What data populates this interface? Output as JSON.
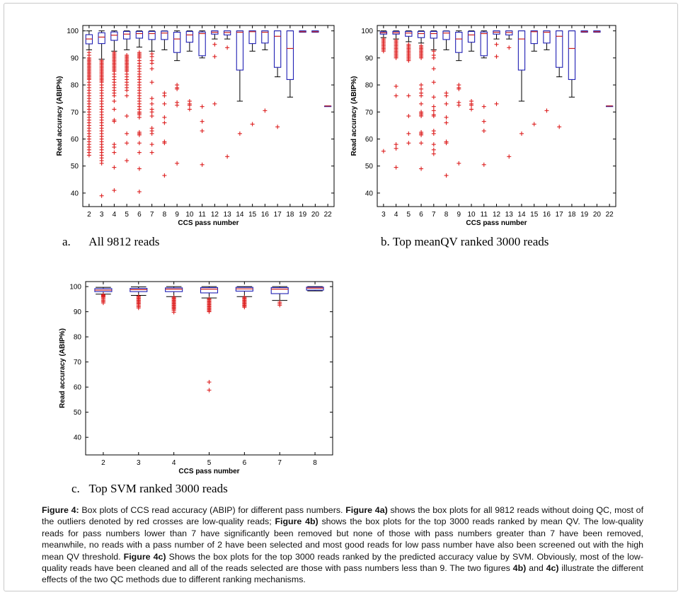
{
  "figure": {
    "panels": [
      {
        "id": "a",
        "letter": "a.",
        "title": "All 9812 reads"
      },
      {
        "id": "b",
        "letter": "b.",
        "title": "Top meanQV ranked 3000 reads"
      },
      {
        "id": "c",
        "letter": "c.",
        "title": "Top SVM ranked 3000 reads"
      }
    ],
    "caption": {
      "label": "Figure 4:",
      "s1": " Box plots of CCS read accuracy (ABIP) for different pass numbers. ",
      "r1": "Figure 4a)",
      "s2": " shows the box plots for all 9812 reads without doing QC, most of the outliers denoted by red crosses are low-quality reads; ",
      "r2": "Figure 4b)",
      "s3": " shows the box plots for the top 3000 reads ranked by mean QV. The low-quality reads for pass numbers lower than 7 have significantly been removed but none of those with pass numbers greater than 7 have been removed, meanwhile, no reads with a pass number of 2 have been selected and most good reads for low pass number have also been screened out with the high mean QV threshold. ",
      "r3": "Figure 4c)",
      "s4": " Shows the box plots for the top 3000 reads ranked by the predicted accuracy value by SVM. Obviously, most of the low-quality reads have been cleaned and all of the reads selected are those with pass numbers less than 9. The two figures ",
      "r4": "4b)",
      "s5": " and ",
      "r5": "4c)",
      "s6": " illustrate the different effects of the two  QC methods due to different ranking mechanisms."
    }
  },
  "colors": {
    "box": "#1f1fb4",
    "median": "#cc1f1f",
    "outlier": "#dd1f1f",
    "whisker": "#000000",
    "frame": "#000000"
  },
  "chart_data": [
    {
      "type": "box",
      "xlabel": "CCS pass number",
      "ylabel": "Read accuracy (ABIP%)",
      "ylim": [
        35,
        102
      ],
      "yticks": [
        40,
        50,
        60,
        70,
        80,
        90,
        100
      ],
      "categories": [
        "2",
        "3",
        "4",
        "5",
        "6",
        "7",
        "8",
        "9",
        "10",
        "11",
        "12",
        "13",
        "14",
        "15",
        "16",
        "17",
        "18",
        "19",
        "20",
        "22"
      ],
      "boxes": [
        {
          "whislo": 93.0,
          "q1": 95.2,
          "med": 97.0,
          "q3": 98.6,
          "whishi": 100,
          "outliers": [
            92,
            91,
            90,
            89.5,
            89,
            88.5,
            88,
            87.5,
            87,
            86.5,
            86,
            85.5,
            85,
            84.5,
            84,
            83.5,
            83,
            82.5,
            82,
            81,
            80,
            79,
            78,
            77,
            76,
            75,
            74,
            73,
            72,
            71,
            70,
            69,
            68,
            67,
            66,
            65,
            64,
            63,
            62,
            61,
            60,
            59,
            58,
            57,
            56,
            55,
            54
          ]
        },
        {
          "whislo": 89.5,
          "q1": 95.3,
          "med": 97.7,
          "q3": 99.3,
          "whishi": 100,
          "outliers": [
            89,
            88.5,
            88,
            87.5,
            87,
            86.5,
            86,
            85.5,
            85,
            84.5,
            84,
            83.5,
            83,
            82.5,
            82,
            81.5,
            81,
            80,
            79,
            78,
            77,
            76,
            75,
            74,
            73,
            72,
            71,
            70,
            69,
            68,
            67,
            66,
            65,
            64,
            63,
            62,
            61,
            60,
            59,
            58,
            57,
            56,
            55,
            54,
            53,
            52,
            51,
            39
          ]
        },
        {
          "whislo": 92.5,
          "q1": 96.5,
          "med": 98.4,
          "q3": 99.6,
          "whishi": 100,
          "outliers": [
            92,
            91.5,
            91,
            90.5,
            90,
            89.5,
            89,
            88.5,
            88,
            87.5,
            87,
            86.5,
            86,
            85.5,
            85,
            84,
            83,
            82,
            81,
            80,
            79,
            78,
            77,
            76,
            74,
            71,
            67,
            66.5,
            58,
            57,
            55,
            49.5,
            41
          ]
        },
        {
          "whislo": 93.0,
          "q1": 97.0,
          "med": 98.8,
          "q3": 99.8,
          "whishi": 100,
          "outliers": [
            91,
            90.5,
            90,
            89.5,
            89,
            88.5,
            88,
            87.5,
            87,
            86.5,
            86,
            85.5,
            85,
            84,
            83,
            82,
            81,
            80,
            79,
            78,
            76,
            68.5,
            62,
            58.5,
            52
          ]
        },
        {
          "whislo": 94.0,
          "q1": 97.3,
          "med": 99.0,
          "q3": 99.8,
          "whishi": 100,
          "outliers": [
            92,
            91.5,
            91,
            90.5,
            90,
            89,
            88,
            87,
            86,
            85,
            84,
            83,
            82,
            81,
            80,
            79,
            78,
            77,
            76,
            75,
            74,
            73,
            72,
            71,
            70,
            69.5,
            69,
            68,
            62.5,
            62,
            61.5,
            58.5,
            55,
            49,
            40.5
          ]
        },
        {
          "whislo": 92.5,
          "q1": 96.8,
          "med": 99.0,
          "q3": 99.8,
          "whishi": 100,
          "outliers": [
            91.5,
            90.5,
            89,
            88,
            86,
            81,
            75,
            73,
            71,
            70,
            68.5,
            64,
            63,
            62,
            58,
            55
          ]
        },
        {
          "whislo": 93.0,
          "q1": 96.8,
          "med": 99.2,
          "q3": 99.9,
          "whishi": 100,
          "outliers": [
            77,
            76,
            73,
            68,
            66,
            59,
            58.5,
            46.5
          ]
        },
        {
          "whislo": 89.0,
          "q1": 92.0,
          "med": 97.0,
          "q3": 99.5,
          "whishi": 100,
          "outliers": [
            80,
            79,
            78.5,
            73.5,
            72.5,
            51
          ]
        },
        {
          "whislo": 92.5,
          "q1": 95.8,
          "med": 98.5,
          "q3": 99.8,
          "whishi": 100,
          "outliers": [
            74,
            73,
            72.5,
            71
          ]
        },
        {
          "whislo": 90.0,
          "q1": 90.8,
          "med": 99.0,
          "q3": 99.6,
          "whishi": 100,
          "outliers": [
            72,
            66.5,
            63,
            50.5
          ]
        },
        {
          "whislo": 97.0,
          "q1": 98.8,
          "med": 99.5,
          "q3": 100,
          "whishi": 100,
          "outliers": [
            95,
            90.5,
            73
          ]
        },
        {
          "whislo": 97.0,
          "q1": 98.5,
          "med": 99.4,
          "q3": 100,
          "whishi": 100,
          "outliers": [
            93.8,
            53.5
          ]
        },
        {
          "whislo": 74.0,
          "q1": 85.5,
          "med": 99.5,
          "q3": 100,
          "whishi": 100,
          "outliers": [
            62
          ]
        },
        {
          "whislo": 92.5,
          "q1": 95.3,
          "med": 99.7,
          "q3": 100,
          "whishi": 100,
          "outliers": [
            65.5
          ]
        },
        {
          "whislo": 93.0,
          "q1": 95.5,
          "med": 99.5,
          "q3": 100,
          "whishi": 100,
          "outliers": [
            70.5
          ]
        },
        {
          "whislo": 83.0,
          "q1": 86.5,
          "med": 98.0,
          "q3": 100,
          "whishi": 100,
          "outliers": [
            64.5
          ]
        },
        {
          "whislo": 75.5,
          "q1": 82.0,
          "med": 93.5,
          "q3": 100,
          "whishi": 100,
          "outliers": []
        },
        {
          "whislo": 99.5,
          "q1": 99.5,
          "med": 99.7,
          "q3": 100,
          "whishi": 100,
          "outliers": []
        },
        {
          "whislo": 99.5,
          "q1": 99.5,
          "med": 99.7,
          "q3": 100,
          "whishi": 100,
          "outliers": []
        },
        {
          "whislo": 72.2,
          "q1": 72.2,
          "med": 72.2,
          "q3": 72.2,
          "whishi": 72.2,
          "outliers": []
        }
      ]
    },
    {
      "type": "box",
      "xlabel": "CCS pass number",
      "ylabel": "Read accuracy (ABIP%)",
      "ylim": [
        35,
        102
      ],
      "yticks": [
        40,
        50,
        60,
        70,
        80,
        90,
        100
      ],
      "categories": [
        "3",
        "4",
        "5",
        "6",
        "7",
        "8",
        "9",
        "10",
        "11",
        "12",
        "13",
        "14",
        "15",
        "16",
        "17",
        "18",
        "19",
        "20",
        "22"
      ],
      "boxes": [
        {
          "whislo": 97.5,
          "q1": 98.8,
          "med": 99.3,
          "q3": 99.7,
          "whishi": 100,
          "outliers": [
            97,
            96.5,
            96,
            95.5,
            95,
            94.5,
            94,
            93.5,
            93,
            92.5,
            55.5
          ]
        },
        {
          "whislo": 97.0,
          "q1": 98.8,
          "med": 99.3,
          "q3": 99.8,
          "whishi": 100,
          "outliers": [
            96.5,
            96,
            95.5,
            95,
            94.5,
            94,
            93.5,
            93,
            92.5,
            92,
            91.5,
            91,
            90.5,
            90,
            79.5,
            76,
            58,
            56.5,
            49.5
          ]
        },
        {
          "whislo": 96.0,
          "q1": 98.0,
          "med": 99.2,
          "q3": 99.8,
          "whishi": 100,
          "outliers": [
            95,
            94.5,
            94,
            93.5,
            93,
            92.5,
            92,
            91.5,
            91,
            90.5,
            90,
            89.5,
            89,
            76,
            68.5,
            62,
            58.5
          ]
        },
        {
          "whislo": 95.5,
          "q1": 97.5,
          "med": 99.0,
          "q3": 99.8,
          "whishi": 100,
          "outliers": [
            94.5,
            94,
            93.5,
            93,
            92.5,
            92,
            91.5,
            91,
            90.5,
            90,
            80,
            78.5,
            77,
            76,
            73,
            70,
            69.5,
            69,
            68.5,
            62.5,
            62,
            61.5,
            58.5,
            49
          ]
        },
        {
          "whislo": 93.0,
          "q1": 97.3,
          "med": 99.0,
          "q3": 99.8,
          "whishi": 100,
          "outliers": [
            92.5,
            91,
            90,
            86,
            81,
            75.5,
            72,
            70.5,
            69,
            68.5,
            63,
            62,
            58,
            56,
            54.5
          ]
        },
        {
          "whislo": 93.0,
          "q1": 96.8,
          "med": 99.2,
          "q3": 99.9,
          "whishi": 100,
          "outliers": [
            77,
            76,
            73,
            68,
            66,
            59,
            58.5,
            46.5
          ]
        },
        {
          "whislo": 89.0,
          "q1": 92.0,
          "med": 97.0,
          "q3": 99.5,
          "whishi": 100,
          "outliers": [
            80,
            79,
            78.5,
            73.5,
            72.5,
            51
          ]
        },
        {
          "whislo": 92.5,
          "q1": 95.8,
          "med": 98.5,
          "q3": 99.8,
          "whishi": 100,
          "outliers": [
            74,
            73,
            72.5,
            71
          ]
        },
        {
          "whislo": 90.0,
          "q1": 90.8,
          "med": 99.0,
          "q3": 99.6,
          "whishi": 100,
          "outliers": [
            72,
            66.5,
            63,
            50.5
          ]
        },
        {
          "whislo": 97.0,
          "q1": 98.8,
          "med": 99.5,
          "q3": 100,
          "whishi": 100,
          "outliers": [
            95,
            90.5,
            73
          ]
        },
        {
          "whislo": 97.0,
          "q1": 98.5,
          "med": 99.4,
          "q3": 100,
          "whishi": 100,
          "outliers": [
            93.8,
            53.5
          ]
        },
        {
          "whislo": 74.0,
          "q1": 85.5,
          "med": 97.0,
          "q3": 100,
          "whishi": 100,
          "outliers": [
            62
          ]
        },
        {
          "whislo": 92.5,
          "q1": 95.3,
          "med": 99.7,
          "q3": 100,
          "whishi": 100,
          "outliers": [
            65.5
          ]
        },
        {
          "whislo": 93.0,
          "q1": 95.5,
          "med": 99.5,
          "q3": 100,
          "whishi": 100,
          "outliers": [
            70.5
          ]
        },
        {
          "whislo": 83.0,
          "q1": 86.5,
          "med": 98.0,
          "q3": 100,
          "whishi": 100,
          "outliers": [
            64.5
          ]
        },
        {
          "whislo": 75.5,
          "q1": 82.0,
          "med": 93.5,
          "q3": 100,
          "whishi": 100,
          "outliers": []
        },
        {
          "whislo": 99.5,
          "q1": 99.5,
          "med": 99.7,
          "q3": 100,
          "whishi": 100,
          "outliers": []
        },
        {
          "whislo": 99.5,
          "q1": 99.5,
          "med": 99.7,
          "q3": 100,
          "whishi": 100,
          "outliers": []
        },
        {
          "whislo": 72.2,
          "q1": 72.2,
          "med": 72.2,
          "q3": 72.2,
          "whishi": 72.2,
          "outliers": []
        }
      ]
    },
    {
      "type": "box",
      "xlabel": "CCS pass number",
      "ylabel": "Read accuracy (ABIP%)",
      "ylim": [
        33,
        102
      ],
      "yticks": [
        40,
        50,
        60,
        70,
        80,
        90,
        100
      ],
      "categories": [
        "2",
        "3",
        "4",
        "5",
        "6",
        "7",
        "8"
      ],
      "boxes": [
        {
          "whislo": 97.0,
          "q1": 98.0,
          "med": 98.6,
          "q3": 99.2,
          "whishi": 99.7,
          "outliers": [
            96.8,
            96.5,
            96.2,
            95.9,
            95.5,
            95.0,
            94.5,
            94.0,
            93.5
          ]
        },
        {
          "whislo": 96.5,
          "q1": 98.0,
          "med": 98.8,
          "q3": 99.3,
          "whishi": 99.9,
          "outliers": [
            96.2,
            95.8,
            95.4,
            95.0,
            94.6,
            94.2,
            93.8,
            93.4,
            93.0,
            92.5,
            92.0,
            91.5
          ]
        },
        {
          "whislo": 96.0,
          "q1": 98.0,
          "med": 99.0,
          "q3": 99.5,
          "whishi": 100,
          "outliers": [
            95.8,
            95.4,
            95.0,
            94.6,
            94.2,
            93.8,
            93.4,
            93.0,
            92.6,
            92.2,
            91.8,
            91.4,
            91.0,
            90.5,
            89.8
          ]
        },
        {
          "whislo": 95.5,
          "q1": 97.5,
          "med": 99.0,
          "q3": 99.6,
          "whishi": 100,
          "outliers": [
            95.2,
            94.8,
            94.4,
            94.0,
            93.6,
            93.2,
            92.8,
            92.4,
            92.0,
            91.6,
            91.2,
            90.8,
            90.4,
            90.0,
            62,
            58.8
          ]
        },
        {
          "whislo": 96.0,
          "q1": 98.2,
          "med": 99.1,
          "q3": 99.7,
          "whishi": 100,
          "outliers": [
            95.8,
            95.4,
            95.0,
            94.6,
            94.2,
            93.8,
            93.4,
            93.0,
            92.6,
            92.2,
            91.8
          ]
        },
        {
          "whislo": 94.5,
          "q1": 97.2,
          "med": 99.0,
          "q3": 99.6,
          "whishi": 100,
          "outliers": [
            93.8,
            93.2,
            92.6
          ]
        },
        {
          "whislo": 98.3,
          "q1": 98.6,
          "med": 99.4,
          "q3": 99.8,
          "whishi": 100,
          "outliers": []
        }
      ]
    }
  ]
}
